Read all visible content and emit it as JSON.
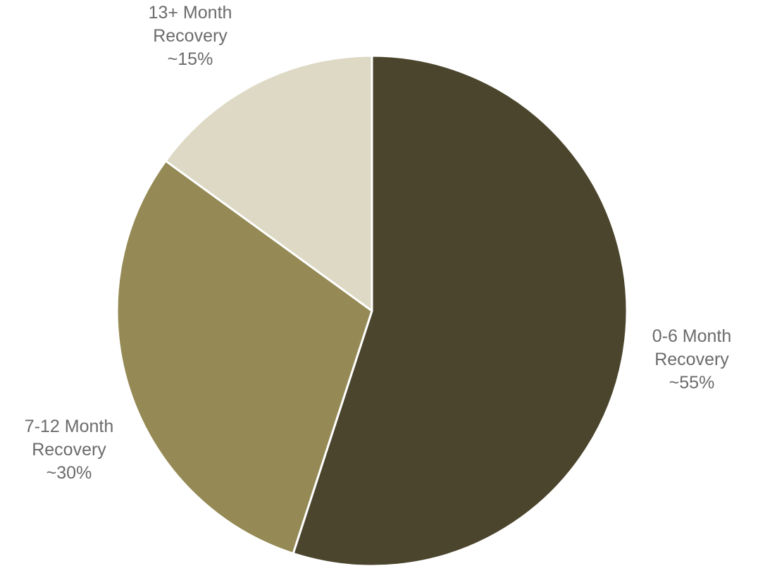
{
  "chart_data": {
    "type": "pie",
    "title": "",
    "start_angle_deg": 0,
    "direction": "clockwise",
    "slices": [
      {
        "label_lines": [
          "0-6 Month",
          "Recovery",
          "~55%"
        ],
        "value": 55,
        "color": "#4b452d"
      },
      {
        "label_lines": [
          "7-12 Month",
          "Recovery",
          "~30%"
        ],
        "value": 30,
        "color": "#958a55"
      },
      {
        "label_lines": [
          "13+ Month",
          "Recovery",
          "~15%"
        ],
        "value": 15,
        "color": "#ddd9c4"
      }
    ]
  }
}
